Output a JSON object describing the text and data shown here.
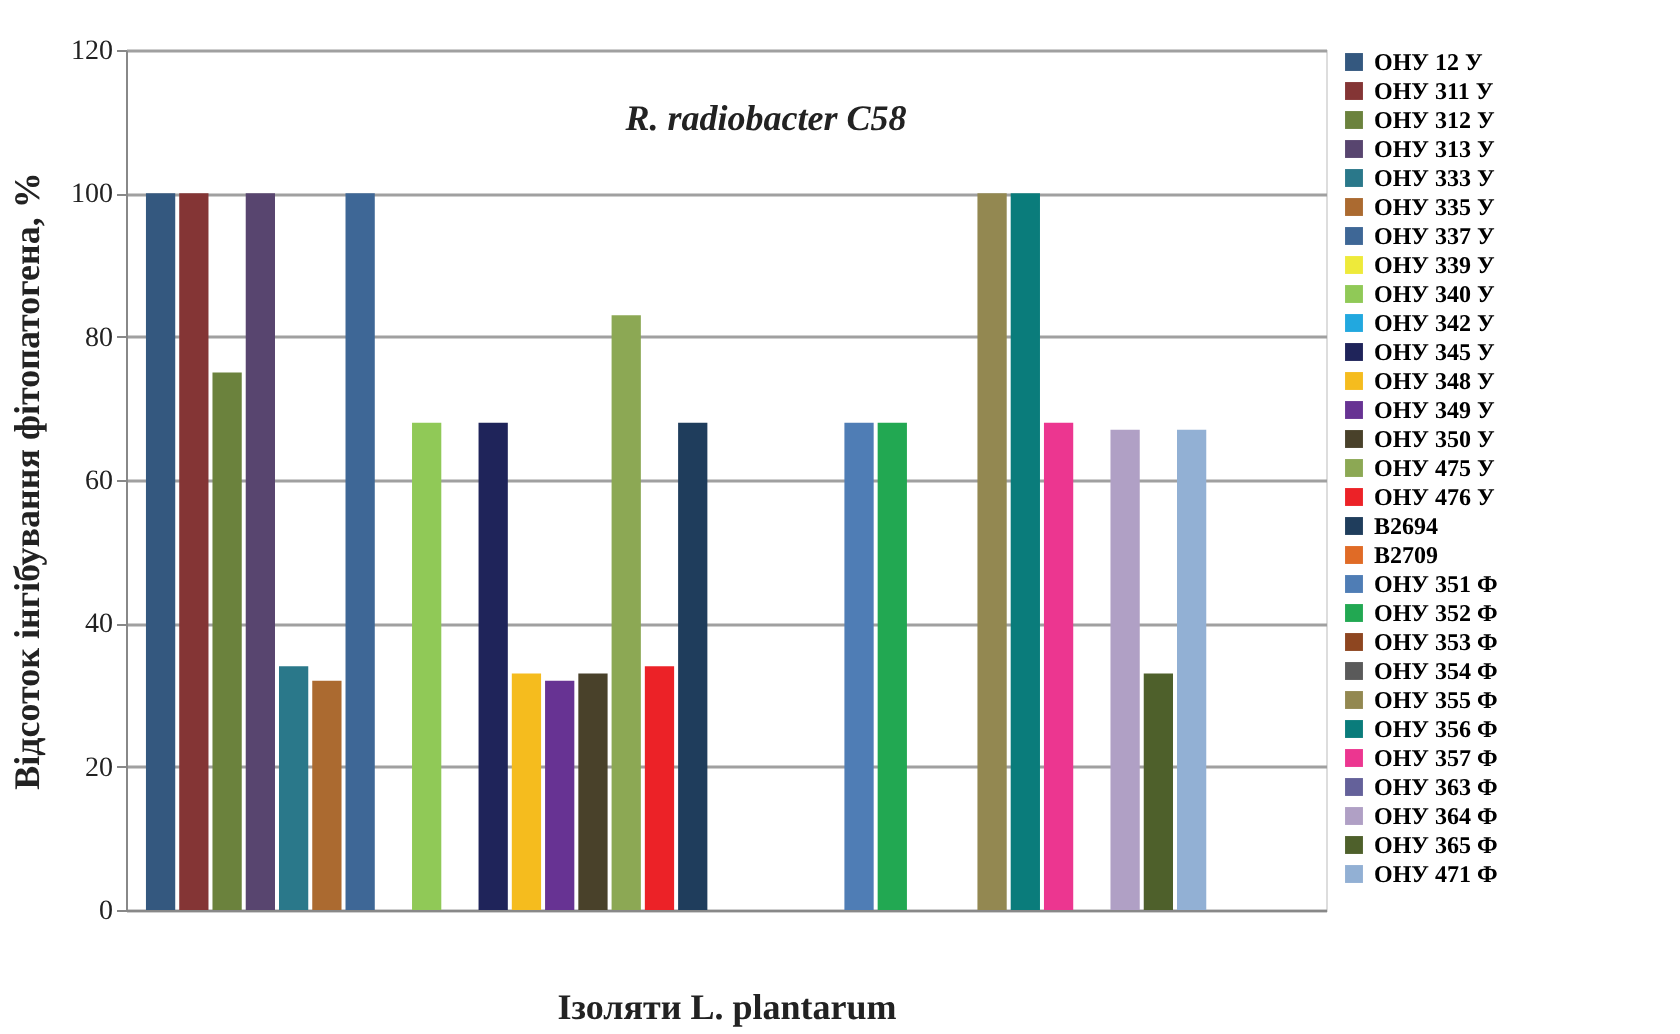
{
  "chart_data": {
    "type": "bar",
    "title": "R. radiobacter C58",
    "xlabel": "Ізоляти L. plantarum",
    "ylabel": "Відсоток інгібування фітопатогена, %",
    "categories": [
      null
    ],
    "series": [
      {
        "name": "ОНУ 12 У",
        "color": "#34587f",
        "values": [
          100
        ]
      },
      {
        "name": "ОНУ 311 У",
        "color": "#843535",
        "values": [
          100
        ]
      },
      {
        "name": "ОНУ 312 У",
        "color": "#6b823d",
        "values": [
          75
        ]
      },
      {
        "name": "ОНУ 313 У",
        "color": "#58456f",
        "values": [
          100
        ]
      },
      {
        "name": "ОНУ 333 У",
        "color": "#2a788a",
        "values": [
          34
        ]
      },
      {
        "name": "ОНУ 335 У",
        "color": "#ab6a30",
        "values": [
          32
        ]
      },
      {
        "name": "ОНУ 337 У",
        "color": "#3e6796",
        "values": [
          100
        ]
      },
      {
        "name": "ОНУ 339 У",
        "color": "#eeea3a",
        "values": [
          null
        ]
      },
      {
        "name": "ОНУ 340 У",
        "color": "#90c957",
        "values": [
          68
        ]
      },
      {
        "name": "ОНУ 342 У",
        "color": "#22a8df",
        "values": [
          null
        ]
      },
      {
        "name": "ОНУ 345 У",
        "color": "#1f245a",
        "values": [
          68
        ]
      },
      {
        "name": "ОНУ 348 У",
        "color": "#f5bc1e",
        "values": [
          33
        ]
      },
      {
        "name": "ОНУ 349 У",
        "color": "#673393",
        "values": [
          32
        ]
      },
      {
        "name": "ОНУ 350 У",
        "color": "#49412a",
        "values": [
          33
        ]
      },
      {
        "name": "ОНУ 475 У",
        "color": "#8ca854",
        "values": [
          83
        ]
      },
      {
        "name": "ОНУ 476 У",
        "color": "#ec2227",
        "values": [
          34
        ]
      },
      {
        "name": "B2694",
        "color": "#1f3d5c",
        "values": [
          68
        ]
      },
      {
        "name": "B2709",
        "color": "#e06b26",
        "values": [
          null
        ]
      },
      {
        "values": [
          null
        ]
      },
      {
        "values": [
          null
        ]
      },
      {
        "values": [
          null
        ]
      },
      {
        "name": "ОНУ 351 Ф",
        "color": "#4f7db5",
        "values": [
          68
        ]
      },
      {
        "name": "ОНУ 352 Ф",
        "color": "#22a852",
        "values": [
          68
        ]
      },
      {
        "name": "ОНУ 353 Ф",
        "color": "#8e4620",
        "values": [
          null
        ]
      },
      {
        "name": "ОНУ 354 Ф",
        "color": "#5a5a5a",
        "values": [
          null
        ]
      },
      {
        "name": "ОНУ 355 Ф",
        "color": "#938851",
        "values": [
          100
        ]
      },
      {
        "name": "ОНУ 356 Ф",
        "color": "#0a7c7b",
        "values": [
          100
        ]
      },
      {
        "name": "ОНУ 357 Ф",
        "color": "#ec3690",
        "values": [
          68
        ]
      },
      {
        "name": "ОНУ 363 Ф",
        "color": "#64619a",
        "values": [
          null
        ]
      },
      {
        "name": "ОНУ 364 Ф",
        "color": "#b0a0c5",
        "values": [
          67
        ]
      },
      {
        "name": "ОНУ 365 Ф",
        "color": "#4e602b",
        "values": [
          33
        ]
      },
      {
        "name": "ОНУ 471 Ф",
        "color": "#92b0d4",
        "values": [
          67
        ]
      },
      {
        "values": [
          null
        ]
      },
      {
        "values": [
          null
        ]
      },
      {
        "values": [
          null
        ]
      }
    ],
    "ylim": [
      0,
      120
    ],
    "yticks": [
      0,
      20,
      40,
      60,
      80,
      100,
      120
    ],
    "grid": "y",
    "legend": "right",
    "tick_labels": "y"
  }
}
